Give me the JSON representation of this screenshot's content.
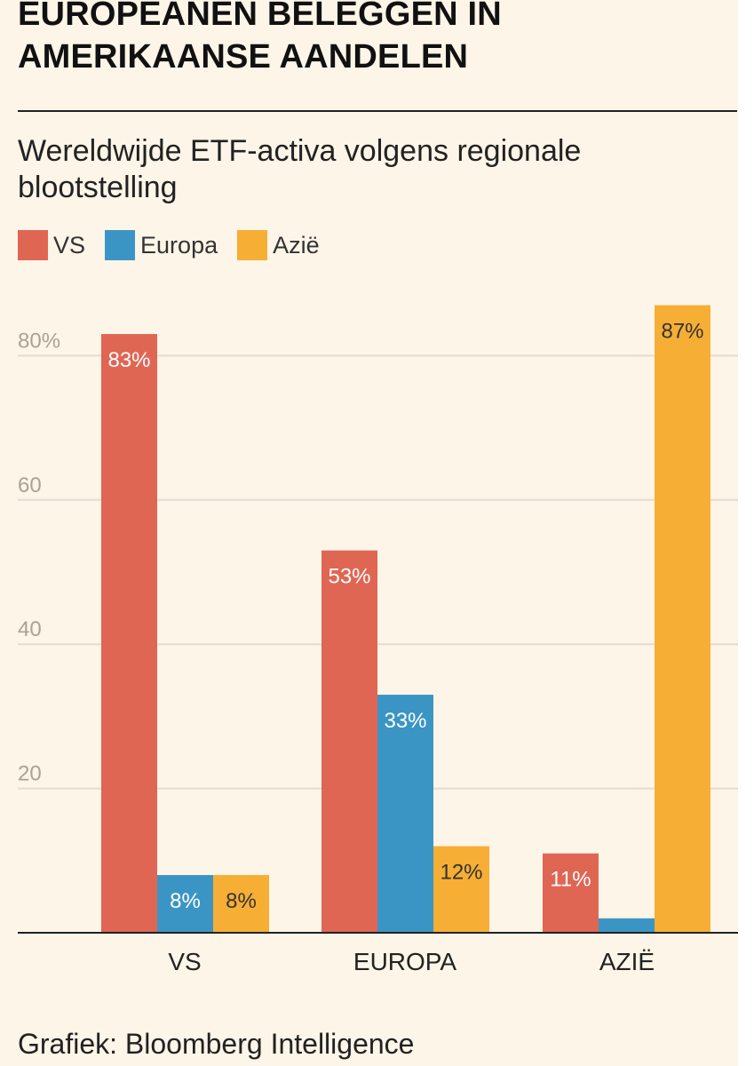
{
  "header": {
    "title_line1": "EUROPEANEN BELEGGEN IN",
    "title_line2": "AMERIKAANSE AANDELEN",
    "subtitle_line1": "Wereldwijde ETF-activa volgens regionale",
    "subtitle_line2": "blootstelling"
  },
  "footer": {
    "source": "Grafiek: Bloomberg Intelligence"
  },
  "colors": {
    "background": "#fdf5e8",
    "vs": "#e06654",
    "europa": "#3b95c4",
    "azie": "#f7ae35",
    "grid": "#e3dccf",
    "tick": "#a9a394"
  },
  "chart_data": {
    "type": "bar",
    "title": "Wereldwijde ETF-activa volgens regionale blootstelling",
    "xlabel": "",
    "ylabel": "",
    "categories": [
      "VS",
      "EUROPA",
      "AZIË"
    ],
    "series": [
      {
        "name": "VS",
        "values": [
          83,
          53,
          11
        ],
        "labels": [
          "83%",
          "53%",
          "11%"
        ]
      },
      {
        "name": "Europa",
        "values": [
          8,
          33,
          2
        ],
        "labels": [
          "8%",
          "33%",
          ""
        ]
      },
      {
        "name": "Azië",
        "values": [
          8,
          12,
          87
        ],
        "labels": [
          "8%",
          "12%",
          "87%"
        ]
      }
    ],
    "ylim": [
      0,
      87
    ],
    "yticks": [
      20,
      40,
      60,
      80
    ],
    "ytick_labels": [
      "20",
      "40",
      "60",
      "80%"
    ],
    "grid": true,
    "legend": "top-left"
  }
}
